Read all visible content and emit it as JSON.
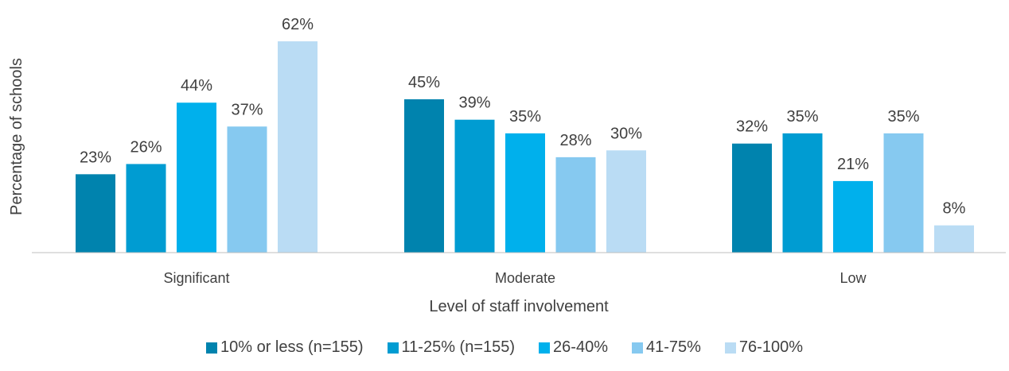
{
  "chart_data": {
    "type": "bar",
    "xlabel": "Level of staff involvement",
    "ylabel": "Percentage of schools",
    "ylim": [
      0,
      65
    ],
    "grid": false,
    "legend_position": "bottom",
    "categories": [
      "Significant",
      "Moderate",
      "Low"
    ],
    "series": [
      {
        "name": "10% or less (n=155)",
        "values": [
          23,
          45,
          32
        ],
        "labels": [
          "23%",
          "45%",
          "32%"
        ],
        "color": "#0083AE"
      },
      {
        "name": "11-25% (n=155)",
        "values": [
          26,
          39,
          35
        ],
        "labels": [
          "26%",
          "39%",
          "35%"
        ],
        "color": "#009CD2"
      },
      {
        "name": "26-40%",
        "values": [
          44,
          35,
          21
        ],
        "labels": [
          "44%",
          "35%",
          "21%"
        ],
        "color": "#00B0EC"
      },
      {
        "name": "41-75%",
        "values": [
          37,
          28,
          35
        ],
        "labels": [
          "37%",
          "28%",
          "35%"
        ],
        "color": "#86C9F0"
      },
      {
        "name": "76-100%",
        "values": [
          62,
          30,
          8
        ],
        "labels": [
          "62%",
          "30%",
          "8%"
        ],
        "color": "#BADCF4"
      }
    ]
  }
}
